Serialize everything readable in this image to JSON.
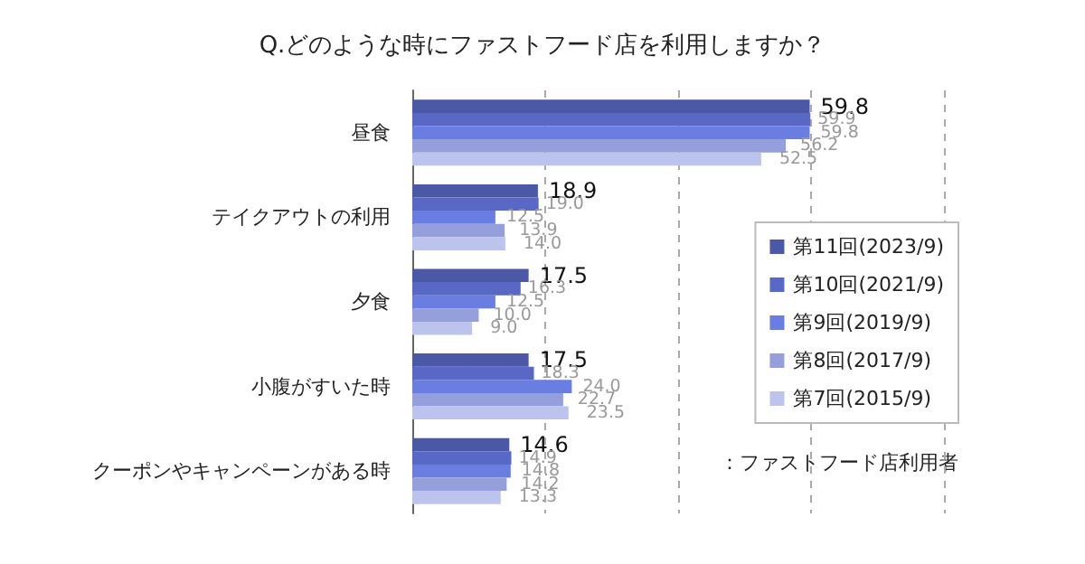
{
  "chart_data": {
    "type": "bar",
    "orientation": "horizontal",
    "title": "Q.どのような時にファストフード店を利用しますか？",
    "categories": [
      "昼食",
      "テイクアウトの利用",
      "夕食",
      "小腹がすいた時",
      "クーポンやキャンペーンがある時"
    ],
    "series": [
      {
        "name": "第11回(2023/9)",
        "color": "#4a58a6",
        "values": [
          59.8,
          18.9,
          17.5,
          17.5,
          14.6
        ],
        "value_labels": [
          "59.8",
          "18.9",
          "17.5",
          "17.5",
          "14.6"
        ]
      },
      {
        "name": "第10回(2021/9)",
        "color": "#5868c4",
        "values": [
          59.9,
          19.0,
          16.3,
          18.3,
          14.9
        ],
        "value_labels": [
          "59.9",
          "19.0",
          "16.3",
          "18.3",
          "14.9"
        ]
      },
      {
        "name": "第9回(2019/9)",
        "color": "#6a7de0",
        "values": [
          59.8,
          12.5,
          12.5,
          24.0,
          14.8
        ],
        "value_labels": [
          "59.8",
          "12.5",
          "12.5",
          "24.0",
          "14.8"
        ]
      },
      {
        "name": "第8回(2017/9)",
        "color": "#949fdc",
        "values": [
          56.2,
          13.9,
          10.0,
          22.7,
          14.2
        ],
        "value_labels": [
          "56.2",
          "13.9",
          "10.0",
          "22.7",
          "14.2"
        ]
      },
      {
        "name": "第7回(2015/9)",
        "color": "#bcc3ec",
        "values": [
          52.5,
          14.0,
          9.0,
          23.5,
          13.3
        ],
        "value_labels": [
          "52.5",
          "14.0",
          "9.0",
          "23.5",
          "13.3"
        ]
      }
    ],
    "xlim": [
      0,
      80
    ],
    "xticks": [
      {
        "value": 0,
        "label": null
      },
      {
        "value": 20,
        "label": null
      },
      {
        "value": 40,
        "label": null
      },
      {
        "value": 60,
        "label": null
      },
      {
        "value": 80,
        "label": null
      }
    ],
    "tick_labels": "y",
    "grid": "x",
    "legend": "right",
    "annotations": [
      "：ファストフード店利用者"
    ]
  }
}
